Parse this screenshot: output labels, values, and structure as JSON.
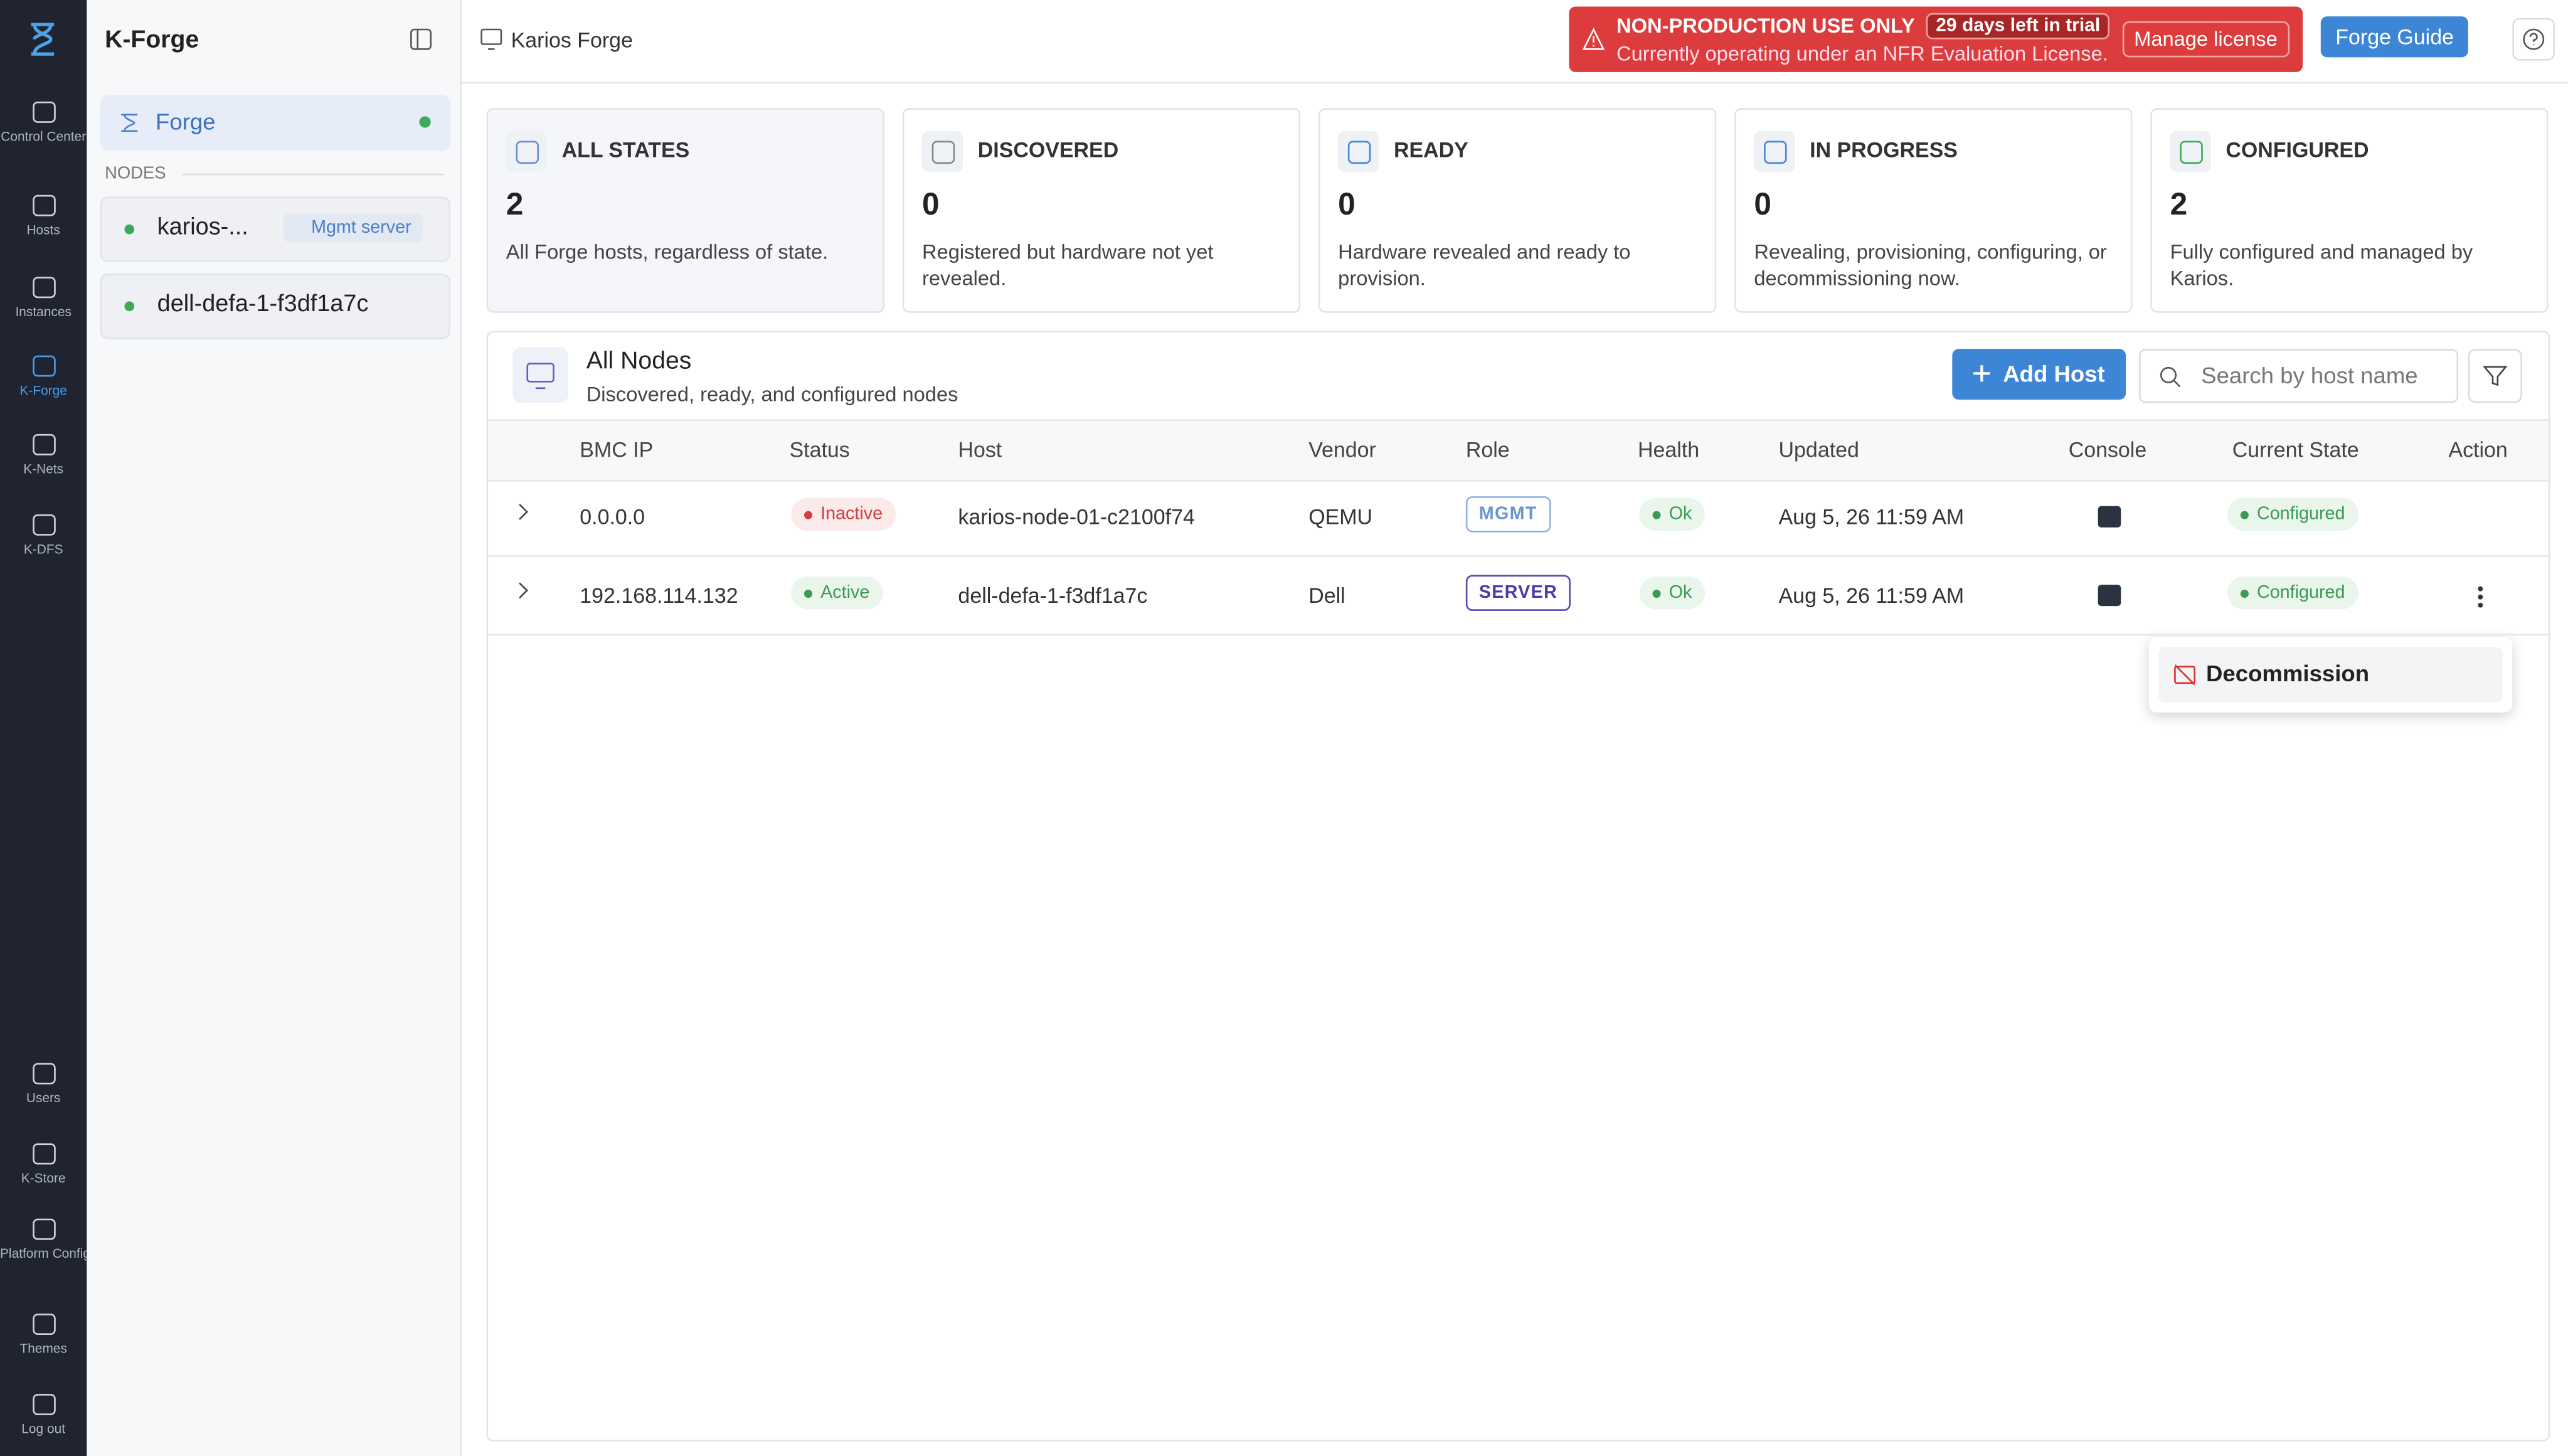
{
  "sidebar": {
    "items": [
      "Control\nCenter",
      "Hosts",
      "Instances",
      "K-Forge",
      "K-Nets",
      "K-DFS"
    ],
    "bottom_items": [
      "Users",
      "K-Store",
      "Platform\nConfig",
      "Themes",
      "Log out"
    ]
  },
  "panel": {
    "title": "K-Forge",
    "forge": "Forge",
    "section": "NODES",
    "nodes": [
      {
        "name": "karios-...",
        "tag": "Mgmt server"
      },
      {
        "name": "dell-defa-1-f3df1a7c"
      }
    ]
  },
  "header": {
    "breadcrumb": "Karios Forge",
    "banner_title": "NON-PRODUCTION USE ONLY",
    "trial": "29 days left in trial",
    "banner_text": "Currently operating under an NFR Evaluation License.",
    "manage": "Manage license",
    "guide": "Forge Guide"
  },
  "stats": [
    {
      "label": "ALL STATES",
      "value": "2",
      "desc": "All Forge hosts, regardless of state."
    },
    {
      "label": "DISCOVERED",
      "value": "0",
      "desc": "Registered but hardware not yet revealed."
    },
    {
      "label": "READY",
      "value": "0",
      "desc": "Hardware revealed and ready to provision."
    },
    {
      "label": "IN PROGRESS",
      "value": "0",
      "desc": "Revealing, provisioning, configuring, or decommissioning now."
    },
    {
      "label": "CONFIGURED",
      "value": "2",
      "desc": "Fully configured and managed by Karios."
    }
  ],
  "table": {
    "title": "All Nodes",
    "subtitle": "Discovered, ready, and configured nodes",
    "add": "Add Host",
    "search": "Search by host name",
    "columns": [
      "BMC IP",
      "Status",
      "Host",
      "Vendor",
      "Role",
      "Health",
      "Updated",
      "Console",
      "Current State",
      "Action"
    ],
    "rows": [
      [
        "0.0.0.0",
        "Inactive",
        "karios-node-01-c2100f74",
        "QEMU",
        "MGMT",
        "Ok",
        "Aug 5, 26 11:59 AM",
        "Configured"
      ],
      [
        "192.168.114.132",
        "Active",
        "dell-defa-1-f3df1a7c",
        "Dell",
        "SERVER",
        "Ok",
        "Aug 5, 26 11:59 AM",
        "Configured"
      ]
    ]
  },
  "menu": {
    "item": "Decommission"
  }
}
